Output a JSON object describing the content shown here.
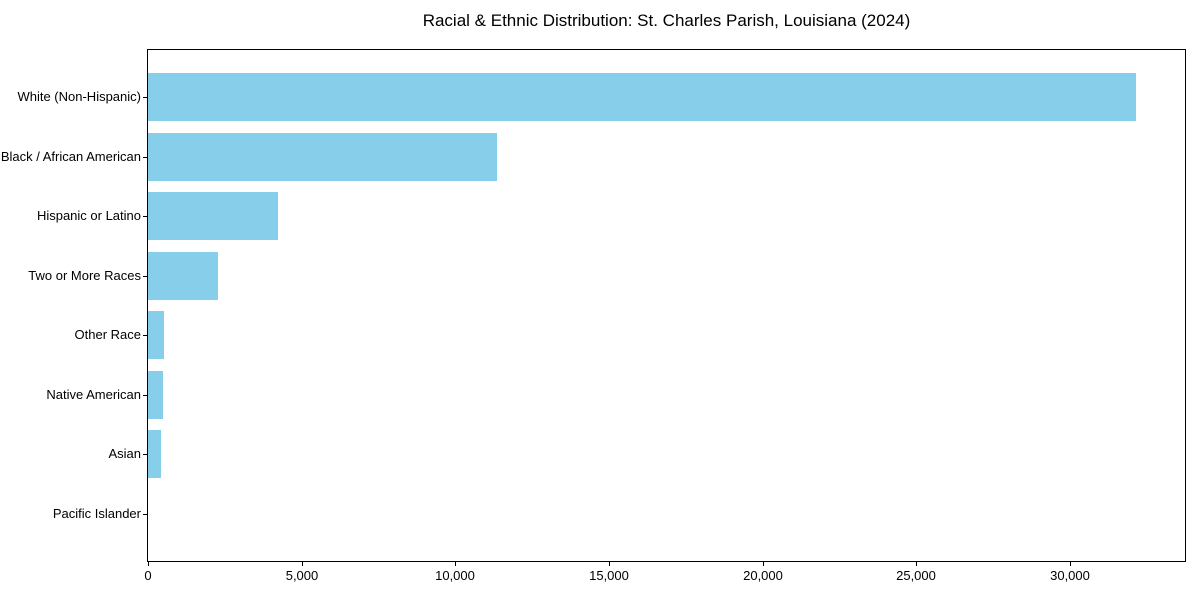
{
  "figure": {
    "background": "#ffffff"
  },
  "chart_data": {
    "type": "bar",
    "orientation": "horizontal",
    "title": "Racial & Ethnic Distribution: St. Charles Parish, Louisiana (2024)",
    "categories": [
      "White (Non-Hispanic)",
      "Black / African American",
      "Hispanic or Latino",
      "Two or More Races",
      "Other Race",
      "Native American",
      "Asian",
      "Pacific Islander"
    ],
    "values": [
      32150,
      11360,
      4230,
      2280,
      520,
      490,
      420,
      0
    ],
    "xlabel": "",
    "ylabel": "",
    "xlim": [
      0,
      33745
    ],
    "xticks": [
      0,
      5000,
      10000,
      15000,
      20000,
      25000,
      30000
    ],
    "xtick_labels": [
      "0",
      "5,000",
      "10,000",
      "15,000",
      "20,000",
      "25,000",
      "30,000"
    ],
    "bar_color": "#87CEEB",
    "axis_color": "#000000",
    "text_color": "#000000",
    "grid": false,
    "legend": null
  }
}
